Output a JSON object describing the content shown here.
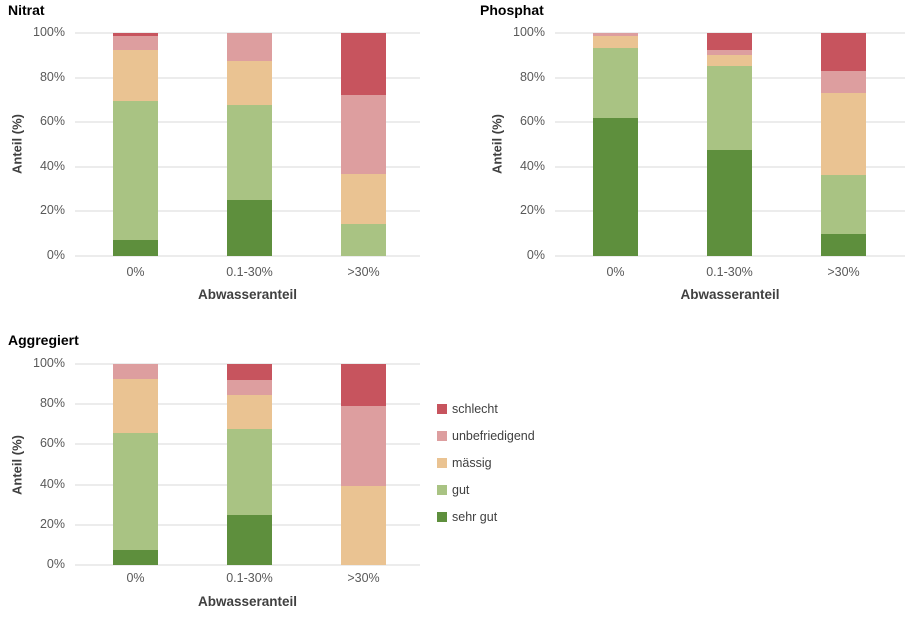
{
  "colors": {
    "sehr_gut": "#5E8F3D",
    "gut": "#A9C383",
    "maessig": "#EAC392",
    "unbefriedigend": "#DD9E9F",
    "schlecht": "#C7545E",
    "grid": "#ECECEC",
    "tick_text": "#595959",
    "axis_title_text": "#404040",
    "title_text": "#000000"
  },
  "legend": {
    "position": "right-middle",
    "items": [
      {
        "label": "schlecht",
        "color": "#C7545E"
      },
      {
        "label": "unbefriedigend",
        "color": "#DD9E9F"
      },
      {
        "label": "mässig",
        "color": "#EAC392"
      },
      {
        "label": "gut",
        "color": "#A9C383"
      },
      {
        "label": "sehr gut",
        "color": "#5E8F3D"
      }
    ]
  },
  "chart_data": [
    {
      "id": "nitrat",
      "type": "bar",
      "stacked": true,
      "title": "Nitrat",
      "xlabel": "Abwasseranteil",
      "ylabel": "Anteil (%)",
      "categories": [
        "0%",
        "0.1-30%",
        ">30%"
      ],
      "series": [
        {
          "name": "sehr gut",
          "color": "#5E8F3D",
          "values": [
            7,
            25,
            0
          ]
        },
        {
          "name": "gut",
          "color": "#A9C383",
          "values": [
            62.5,
            42.5,
            14.5
          ]
        },
        {
          "name": "mässig",
          "color": "#EAC392",
          "values": [
            23,
            20,
            22.5
          ]
        },
        {
          "name": "unbefriedigend",
          "color": "#DD9E9F",
          "values": [
            6,
            12.5,
            35
          ]
        },
        {
          "name": "schlecht",
          "color": "#C7545E",
          "values": [
            1.5,
            0,
            28
          ]
        }
      ],
      "ylim": [
        0,
        100
      ],
      "grid": "horizontal",
      "yticks": [
        {
          "v": 0,
          "label": "0%"
        },
        {
          "v": 20,
          "label": "20%"
        },
        {
          "v": 40,
          "label": "40%"
        },
        {
          "v": 60,
          "label": "60%"
        },
        {
          "v": 80,
          "label": "80%"
        },
        {
          "v": 100,
          "label": "100%"
        }
      ]
    },
    {
      "id": "phosphat",
      "type": "bar",
      "stacked": true,
      "title": "Phosphat",
      "xlabel": "Abwasseranteil",
      "ylabel": "Anteil (%)",
      "categories": [
        "0%",
        "0.1-30%",
        ">30%"
      ],
      "series": [
        {
          "name": "sehr gut",
          "color": "#5E8F3D",
          "values": [
            62,
            47.5,
            10
          ]
        },
        {
          "name": "gut",
          "color": "#A9C383",
          "values": [
            31.5,
            37.5,
            26.5
          ]
        },
        {
          "name": "mässig",
          "color": "#EAC392",
          "values": [
            5,
            5,
            36.5
          ]
        },
        {
          "name": "unbefriedigend",
          "color": "#DD9E9F",
          "values": [
            1.5,
            2.5,
            10
          ]
        },
        {
          "name": "schlecht",
          "color": "#C7545E",
          "values": [
            0,
            7.5,
            17
          ]
        }
      ],
      "ylim": [
        0,
        100
      ],
      "grid": "horizontal",
      "yticks": [
        {
          "v": 0,
          "label": "0%"
        },
        {
          "v": 20,
          "label": "20%"
        },
        {
          "v": 40,
          "label": "40%"
        },
        {
          "v": 60,
          "label": "60%"
        },
        {
          "v": 80,
          "label": "80%"
        },
        {
          "v": 100,
          "label": "100%"
        }
      ]
    },
    {
      "id": "aggregiert",
      "type": "bar",
      "stacked": true,
      "title": "Aggregiert",
      "xlabel": "Abwasseranteil",
      "ylabel": "Anteil (%)",
      "categories": [
        "0%",
        "0.1-30%",
        ">30%"
      ],
      "series": [
        {
          "name": "sehr gut",
          "color": "#5E8F3D",
          "values": [
            7.5,
            25,
            0
          ]
        },
        {
          "name": "gut",
          "color": "#A9C383",
          "values": [
            58,
            42.5,
            0
          ]
        },
        {
          "name": "mässig",
          "color": "#EAC392",
          "values": [
            27,
            17,
            39.5
          ]
        },
        {
          "name": "unbefriedigend",
          "color": "#DD9E9F",
          "values": [
            7.5,
            7.5,
            39.5
          ]
        },
        {
          "name": "schlecht",
          "color": "#C7545E",
          "values": [
            0,
            8,
            21
          ]
        }
      ],
      "ylim": [
        0,
        100
      ],
      "grid": "horizontal",
      "yticks": [
        {
          "v": 0,
          "label": "0%"
        },
        {
          "v": 20,
          "label": "20%"
        },
        {
          "v": 40,
          "label": "40%"
        },
        {
          "v": 60,
          "label": "60%"
        },
        {
          "v": 80,
          "label": "80%"
        },
        {
          "v": 100,
          "label": "100%"
        }
      ]
    }
  ]
}
